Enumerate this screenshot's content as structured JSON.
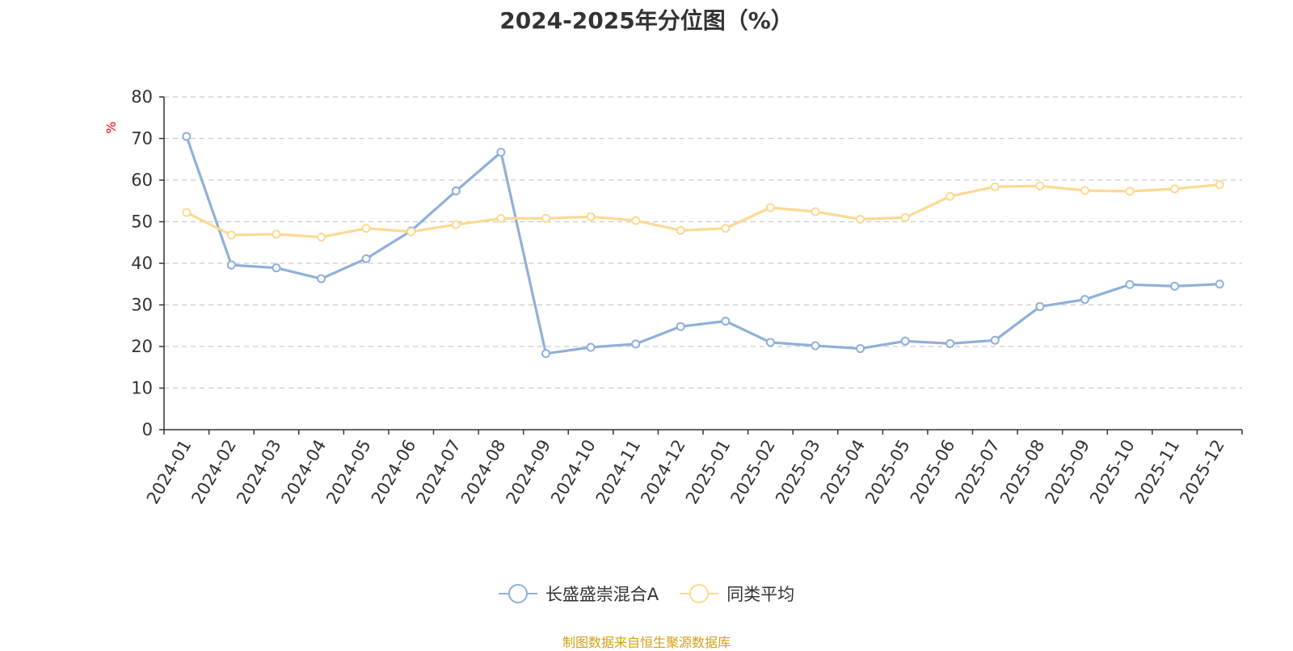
{
  "chart_data": {
    "type": "line",
    "title": "2024-2025年分位图（%）",
    "ylabel": "%",
    "xlabel": "",
    "ylim": [
      0,
      80
    ],
    "yticks": [
      0,
      10,
      20,
      30,
      40,
      50,
      60,
      70,
      80
    ],
    "grid": true,
    "legend_position": "bottom-center",
    "categories": [
      "2024-01",
      "2024-02",
      "2024-03",
      "2024-04",
      "2024-05",
      "2024-06",
      "2024-07",
      "2024-08",
      "2024-09",
      "2024-10",
      "2024-11",
      "2024-12",
      "2025-01",
      "2025-02",
      "2025-03",
      "2025-04",
      "2025-05",
      "2025-06",
      "2025-07",
      "2025-08",
      "2025-09",
      "2025-10",
      "2025-11",
      "2025-12"
    ],
    "series": [
      {
        "name": "长盛盛崇混合A",
        "color": "#8fb0da",
        "values": [
          70.5,
          39.6,
          38.9,
          36.3,
          41.1,
          47.8,
          57.4,
          66.7,
          18.3,
          19.8,
          20.6,
          24.8,
          26.1,
          21.0,
          20.2,
          19.5,
          21.3,
          20.7,
          21.5,
          29.6,
          31.3,
          34.9,
          34.5,
          35.0
        ]
      },
      {
        "name": "同类平均",
        "color": "#fcd993",
        "values": [
          52.2,
          46.8,
          47.0,
          46.3,
          48.4,
          47.6,
          49.3,
          50.8,
          50.8,
          51.2,
          50.3,
          47.9,
          48.4,
          53.4,
          52.4,
          50.6,
          51.0,
          56.1,
          58.4,
          58.6,
          57.5,
          57.3,
          57.9,
          58.9
        ]
      }
    ]
  },
  "source_note": "制图数据来自恒生聚源数据库",
  "colors": {
    "axis": "#333333",
    "grid": "#cccccc",
    "ylabel": "#ff0000",
    "source": "#d4a017"
  }
}
